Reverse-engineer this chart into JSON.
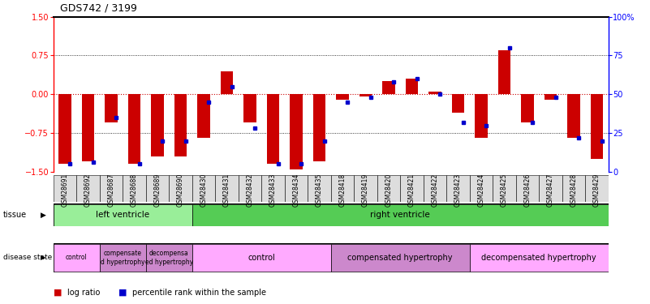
{
  "title": "GDS742 / 3199",
  "samples": [
    "GSM28691",
    "GSM28692",
    "GSM28687",
    "GSM28688",
    "GSM28689",
    "GSM28690",
    "GSM28430",
    "GSM28431",
    "GSM28432",
    "GSM28433",
    "GSM28434",
    "GSM28435",
    "GSM28418",
    "GSM28419",
    "GSM28420",
    "GSM28421",
    "GSM28422",
    "GSM28423",
    "GSM28424",
    "GSM28425",
    "GSM28426",
    "GSM28427",
    "GSM28428",
    "GSM28429"
  ],
  "log_ratio": [
    -1.35,
    -1.3,
    -0.55,
    -1.35,
    -1.2,
    -1.2,
    -0.85,
    0.45,
    -0.55,
    -1.35,
    -1.45,
    -1.3,
    -0.1,
    -0.05,
    0.25,
    0.3,
    0.05,
    -0.35,
    -0.85,
    0.85,
    -0.55,
    -0.1,
    -0.85,
    -1.25
  ],
  "percentile": [
    5,
    6,
    35,
    5,
    20,
    20,
    45,
    55,
    28,
    5,
    5,
    20,
    45,
    48,
    58,
    60,
    50,
    32,
    30,
    80,
    32,
    48,
    22,
    20
  ],
  "tissue_groups": [
    {
      "label": "left ventricle",
      "start": 0,
      "end": 5,
      "color": "#99ee99"
    },
    {
      "label": "right ventricle",
      "start": 6,
      "end": 23,
      "color": "#55cc55"
    }
  ],
  "disease_groups": [
    {
      "label": "control",
      "start": 0,
      "end": 1,
      "color": "#ffaaff"
    },
    {
      "label": "compensate\nd hypertrophy",
      "start": 2,
      "end": 3,
      "color": "#cc88cc"
    },
    {
      "label": "decompensa\ned hypertrophy",
      "start": 4,
      "end": 5,
      "color": "#cc88cc"
    },
    {
      "label": "control",
      "start": 6,
      "end": 11,
      "color": "#ffaaff"
    },
    {
      "label": "compensated hypertrophy",
      "start": 12,
      "end": 17,
      "color": "#cc88cc"
    },
    {
      "label": "decompensated hypertrophy",
      "start": 18,
      "end": 23,
      "color": "#ffaaff"
    }
  ],
  "bar_color": "#cc0000",
  "dot_color": "#0000cc",
  "ylim_left": [
    -1.5,
    1.5
  ],
  "ylim_right": [
    0,
    100
  ],
  "yticks_left": [
    -1.5,
    -0.75,
    0,
    0.75,
    1.5
  ],
  "yticks_right": [
    0,
    25,
    50,
    75,
    100
  ],
  "hlines": [
    -0.75,
    0.0,
    0.75
  ],
  "bar_width": 0.55
}
